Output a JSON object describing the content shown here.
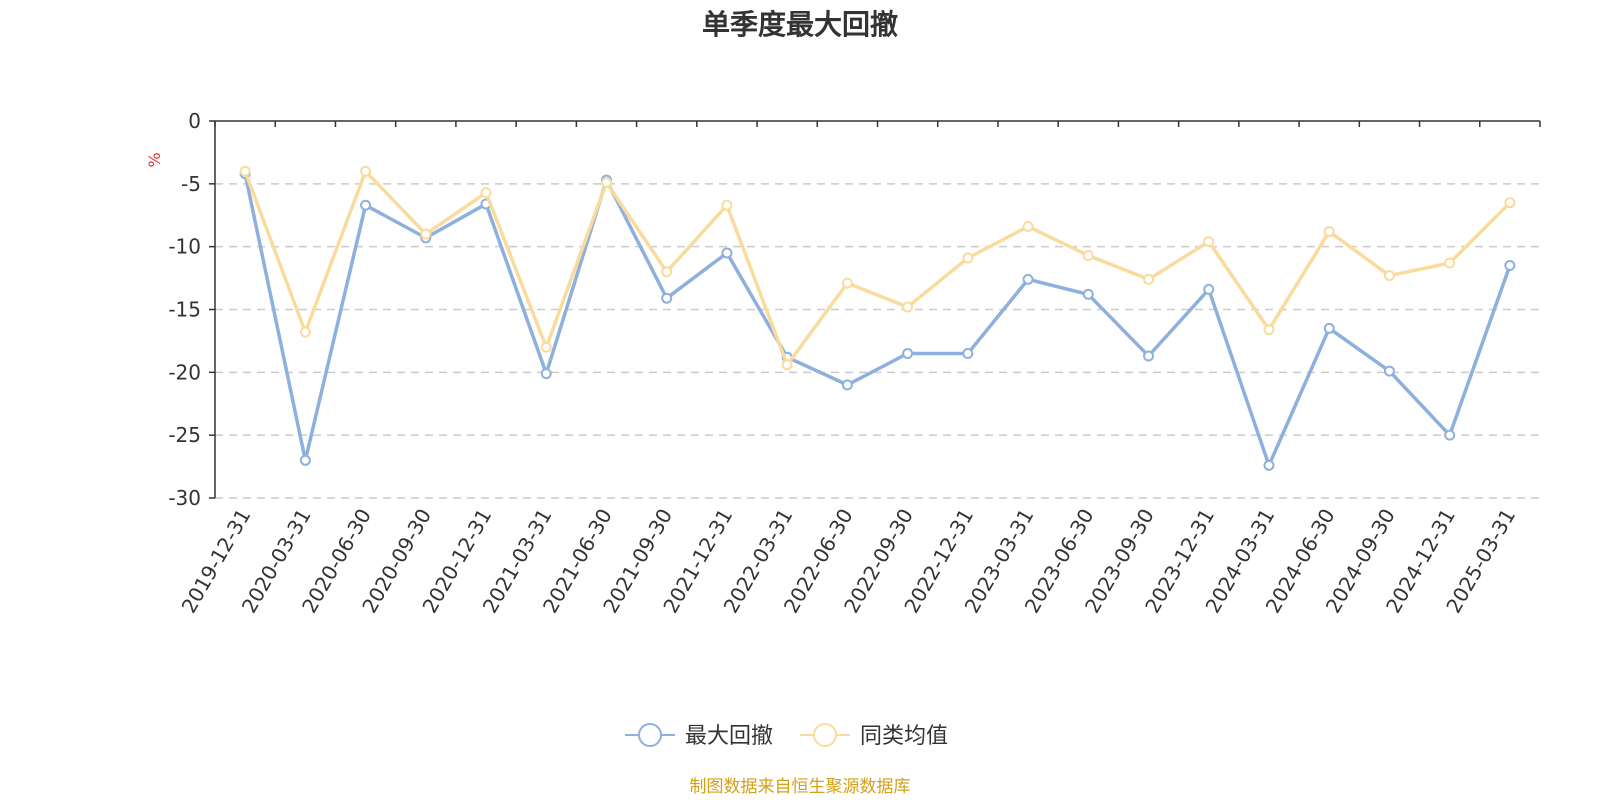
{
  "chart_data": {
    "type": "line",
    "title": "单季度最大回撤",
    "ylabel": "%",
    "ylim": [
      -30,
      0
    ],
    "yticks": [
      0,
      -5,
      -10,
      -15,
      -20,
      -25,
      -30
    ],
    "grid": true,
    "legend_position": "bottom-center",
    "categories": [
      "2019-12-31",
      "2020-03-31",
      "2020-06-30",
      "2020-09-30",
      "2020-12-31",
      "2021-03-31",
      "2021-06-30",
      "2021-09-30",
      "2021-12-31",
      "2022-03-31",
      "2022-06-30",
      "2022-09-30",
      "2022-12-31",
      "2023-03-31",
      "2023-06-30",
      "2023-09-30",
      "2023-12-31",
      "2024-03-31",
      "2024-06-30",
      "2024-09-30",
      "2024-12-31",
      "2025-03-31"
    ],
    "series": [
      {
        "name": "最大回撤",
        "color": "#8eb0dc",
        "values": [
          -4.2,
          -27.0,
          -6.7,
          -9.3,
          -6.6,
          -20.1,
          -4.7,
          -14.1,
          -10.5,
          -18.8,
          -21.0,
          -18.5,
          -18.5,
          -12.6,
          -13.8,
          -18.7,
          -13.4,
          -27.4,
          -16.5,
          -19.9,
          -25.0,
          -11.5
        ]
      },
      {
        "name": "同类均值",
        "color": "#f9dc9d",
        "values": [
          -4.0,
          -16.8,
          -4.0,
          -9.0,
          -5.7,
          -18.0,
          -4.9,
          -12.0,
          -6.7,
          -19.4,
          -12.9,
          -14.8,
          -10.9,
          -8.4,
          -10.7,
          -12.6,
          -9.6,
          -16.6,
          -8.8,
          -12.3,
          -11.3,
          -6.5
        ]
      }
    ],
    "source": "制图数据来自恒生聚源数据库",
    "source_color": "#d4a017",
    "unit_color": "#e03030"
  }
}
